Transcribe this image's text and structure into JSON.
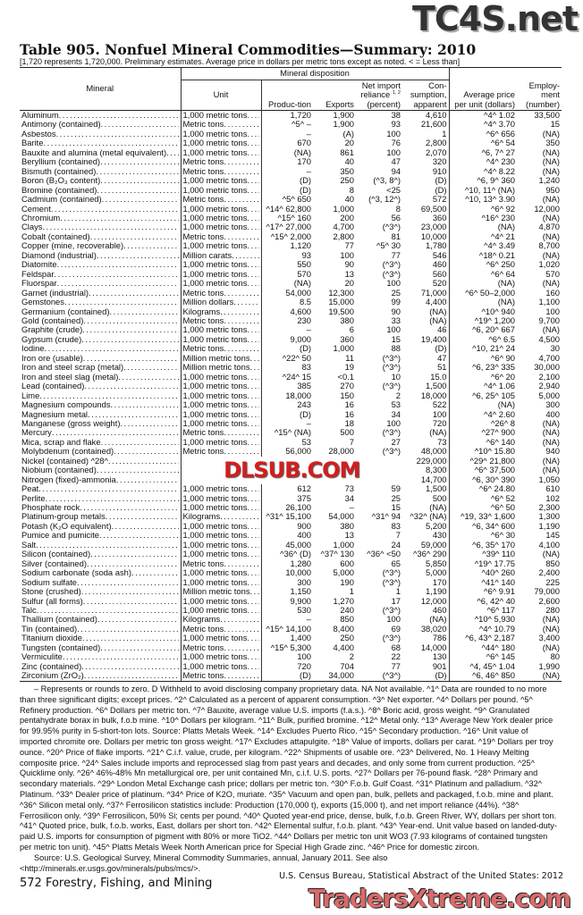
{
  "watermarks": {
    "top": "TC4S.net",
    "middle": "DLSUB.COM",
    "bottom": "TradersXtreme.com"
  },
  "title": "Table 905. Nonfuel Mineral Commodities—Summary: 2010",
  "subtitle": "[1,720 represents 1,720,000. Preliminary estimates. Average price in dollars per metric tons except as noted. < = Less than]",
  "headers": {
    "mineral": "Mineral",
    "disposition": "Mineral disposition",
    "unit": "Unit",
    "production": "Produc-tion",
    "exports": "Exports",
    "import": "Net import reliance ^1, 2^ (percent)",
    "consumption": "Con-sumption, apparent",
    "price": "Average price per unit (dollars)",
    "employment": "Employ-ment (number)"
  },
  "rows": [
    [
      "Aluminum",
      "1,000 metric tons",
      "1,720",
      "1,900",
      "38",
      "4,610",
      "^4^ 1.02",
      "33,500"
    ],
    [
      "Antimony (contained)",
      "Metric tons",
      "^5^ –",
      "1,900",
      "93",
      "21,600",
      "^4^ 3.70",
      "15"
    ],
    [
      "Asbestos",
      "1,000 metric tons",
      "–",
      "(A)",
      "100",
      "1",
      "^6^ 656",
      "(NA)"
    ],
    [
      "Barite",
      "1,000 metric tons",
      "670",
      "20",
      "76",
      "2,800",
      "^6^ 54",
      "350"
    ],
    [
      "Bauxite and alumina (metal equivalent)",
      "1,000 metric tons",
      "(NA)",
      "861",
      "100",
      "2,070",
      "^6, 7^ 27",
      "(NA)"
    ],
    [
      "Beryllium (contained)",
      "Metric tons",
      "170",
      "40",
      "47",
      "320",
      "^4^ 230",
      "(NA)"
    ],
    [
      "Bismuth (contained)",
      "Metric tons",
      "–",
      "350",
      "94",
      "910",
      "^4^ 8.22",
      "(NA)"
    ],
    [
      "Boron (B₂O₃ content)",
      "1,000 metric tons",
      "(D)",
      "250",
      "(^3, 8^)",
      "(D)",
      "^6, 9^ 360",
      "1,240"
    ],
    [
      "Bromine (contained)",
      "1,000 metric tons",
      "(D)",
      "8",
      "<25",
      "(D)",
      "^10, 11^ (NA)",
      "950"
    ],
    [
      "Cadmium (contained)",
      "Metric tons",
      "^5^ 650",
      "40",
      "(^3, 12^)",
      "572",
      "^10, 13^ 3.90",
      "(NA)"
    ],
    [
      "Cement",
      "1,000 metric tons",
      "^14^ 62,800",
      "1,000",
      "8",
      "69,500",
      "^6^ 92",
      "12,000"
    ],
    [
      "Chromium",
      "1,000 metric tons",
      "^15^ 160",
      "200",
      "56",
      "360",
      "^16^ 230",
      "(NA)"
    ],
    [
      "Clays",
      "1,000 metric tons",
      "^17^ 27,000",
      "4,700",
      "(^3^)",
      "23,000",
      "(NA)",
      "4,870"
    ],
    [
      "Cobalt (contained)",
      "Metric tons",
      "^15^ 2,000",
      "2,800",
      "81",
      "10,000",
      "^4^ 21",
      "(NA)"
    ],
    [
      "Copper (mine, recoverable)",
      "1,000 metric tons",
      "1,120",
      "77",
      "^5^ 30",
      "1,780",
      "^4^ 3.49",
      "8,700"
    ],
    [
      "Diamond (industrial)",
      "Million carats",
      "93",
      "100",
      "77",
      "546",
      "^18^ 0.21",
      "(NA)"
    ],
    [
      "Diatomite",
      "1,000 metric tons",
      "550",
      "90",
      "(^3^)",
      "460",
      "^6^ 250",
      "1,020"
    ],
    [
      "Feldspar",
      "1,000 metric tons",
      "570",
      "13",
      "(^3^)",
      "560",
      "^6^ 64",
      "570"
    ],
    [
      "Fluorspar",
      "1,000 metric tons",
      "(NA)",
      "20",
      "100",
      "520",
      "(NA)",
      "(NA)"
    ],
    [
      "Garnet (industrial)",
      "Metric tons",
      "54,000",
      "12,300",
      "25",
      "71,000",
      "^6^ 50–2,000",
      "160"
    ],
    [
      "Gemstones",
      "Million dollars",
      "8.5",
      "15,000",
      "99",
      "4,400",
      "(NA)",
      "1,100"
    ],
    [
      "Germanium (contained)",
      "Kilograms",
      "4,600",
      "19,500",
      "90",
      "(NA)",
      "^10^ 940",
      "100"
    ],
    [
      "Gold (contained)",
      "Metric tons",
      "230",
      "380",
      "33",
      "(NA)",
      "^19^ 1,200",
      "9,700"
    ],
    [
      "Graphite (crude)",
      "1,000 metric tons",
      "–",
      "6",
      "100",
      "46",
      "^6, 20^ 667",
      "(NA)"
    ],
    [
      "Gypsum (crude)",
      "1,000 metric tons",
      "9,000",
      "360",
      "15",
      "19,400",
      "^6^ 6.5",
      "4,500"
    ],
    [
      "Iodine",
      "Metric tons",
      "(D)",
      "1,000",
      "88",
      "(D)",
      "^10, 21^ 24",
      "30"
    ],
    [
      "Iron ore (usable)",
      "Million metric tons",
      "^22^ 50",
      "11",
      "(^3^)",
      "47",
      "^6^ 90",
      "4,700"
    ],
    [
      "Iron and steel scrap (metal)",
      "Million metric tons",
      "83",
      "19",
      "(^3^)",
      "51",
      "^6, 23^ 335",
      "30,000"
    ],
    [
      "Iron and steel slag (metal)",
      "1,000 metric tons",
      "^24^ 15",
      "<0.1",
      "10",
      "15.0",
      "^6^ 20",
      "2,100"
    ],
    [
      "Lead (contained)",
      "1,000 metric tons",
      "385",
      "270",
      "(^3^)",
      "1,500",
      "^4^ 1.06",
      "2,940"
    ],
    [
      "Lime",
      "1,000 metric tons",
      "18,000",
      "150",
      "2",
      "18,000",
      "^6, 25^ 105",
      "5,000"
    ],
    [
      "Magnesium compounds",
      "1,000 metric tons",
      "243",
      "16",
      "53",
      "522",
      "(NA)",
      "300"
    ],
    [
      "Magnesium metal",
      "1,000 metric tons",
      "(D)",
      "16",
      "34",
      "100",
      "^4^ 2.60",
      "400"
    ],
    [
      "Manganese (gross weight)",
      "1,000 metric tons",
      "–",
      "18",
      "100",
      "720",
      "^26^ 8",
      "(NA)"
    ],
    [
      "Mercury",
      "Metric tons",
      "^15^ (NA)",
      "500",
      "(^3^)",
      "(NA)",
      "^27^ 900",
      "(NA)"
    ],
    [
      "Mica, scrap and flake",
      "1,000 metric tons",
      "53",
      "7",
      "27",
      "73",
      "^6^ 140",
      "(NA)"
    ],
    [
      "Molybdenum (contained)",
      "Metric tons",
      "56,000",
      "28,000",
      "(^3^)",
      "48,000",
      "^10^ 15.80",
      "940"
    ],
    [
      "Nickel (contained) ^28^",
      "",
      "",
      "",
      "",
      "229,000",
      "^29^ 21,800",
      "(NA)"
    ],
    [
      "Niobium (contained)",
      "",
      "",
      "",
      "",
      "8,300",
      "^6^ 37,500",
      "(NA)"
    ],
    [
      "Nitrogen (fixed)-ammonia",
      "",
      "",
      "",
      "",
      "14,700",
      "^6, 30^ 390",
      "1,050"
    ],
    [
      "Peat",
      "1,000 metric tons",
      "612",
      "73",
      "59",
      "1,500",
      "^6^ 24.80",
      "610"
    ],
    [
      "Perlite",
      "1,000 metric tons",
      "375",
      "34",
      "25",
      "500",
      "^6^ 52",
      "102"
    ],
    [
      "Phosphate rock",
      "1,000 metric tons",
      "26,100",
      "–",
      "15",
      "(NA)",
      "^6^ 50",
      "2,300"
    ],
    [
      "Platinum-group metals",
      "Kilograms",
      "^31^ 15,100",
      "54,000",
      "^31^ 94",
      "^32^ (NA)",
      "^19, 33^ 1,600",
      "1,300"
    ],
    [
      "Potash (K₂O equivalent)",
      "1,000 metric tons",
      "900",
      "380",
      "83",
      "5,200",
      "^6, 34^ 600",
      "1,190"
    ],
    [
      "Pumice and pumicite",
      "1,000 metric tons",
      "400",
      "13",
      "7",
      "430",
      "^6^ 30",
      "145"
    ],
    [
      "Salt",
      "1,000 metric tons",
      "45,000",
      "1,000",
      "24",
      "59,000",
      "^6, 35^ 170",
      "4,100"
    ],
    [
      "Silicon (contained)",
      "1,000 metric tons",
      "^36^ (D)",
      "^37^ 130",
      "^36^ <50",
      "^36^ 290",
      "^39^ 110",
      "(NA)"
    ],
    [
      "Silver (contained)",
      "Metric tons",
      "1,280",
      "600",
      "65",
      "5,850",
      "^19^ 17.75",
      "850"
    ],
    [
      "Sodium carbonate (soda ash)",
      "1,000 metric tons",
      "10,000",
      "5,000",
      "(^3^)",
      "5,000",
      "^40^ 260",
      "2,400"
    ],
    [
      "Sodium sulfate",
      "1,000 metric tons",
      "300",
      "190",
      "(^3^)",
      "170",
      "^41^ 140",
      "225"
    ],
    [
      "Stone (crushed)",
      "Million metric tons",
      "1,150",
      "1",
      "1",
      "1,190",
      "^6^ 9.91",
      "79,000"
    ],
    [
      "Sulfur (all forms)",
      "1,000 metric tons",
      "9,900",
      "1,270",
      "17",
      "12,000",
      "^6, 42^ 40",
      "2,600"
    ],
    [
      "Talc",
      "1,000 metric tons",
      "530",
      "240",
      "(^3^)",
      "460",
      "^6^ 117",
      "280"
    ],
    [
      "Thallium (contained)",
      "Kilograms",
      "–",
      "850",
      "100",
      "(NA)",
      "^10^ 5,930",
      "(NA)"
    ],
    [
      "Tin (contained)",
      "Metric tons",
      "^15^ 14,100",
      "8,400",
      "69",
      "38,020",
      "^4^ 10.79",
      "(NA)"
    ],
    [
      "Titanium dioxide",
      "1,000 metric tons",
      "1,400",
      "250",
      "(^3^)",
      "786",
      "^6, 43^ 2,187",
      "3,400"
    ],
    [
      "Tungsten (contained)",
      "Metric tons",
      "^15^ 5,300",
      "4,400",
      "68",
      "14,000",
      "^44^ 180",
      "(NA)"
    ],
    [
      "Vermiculite",
      "1,000 metric tons",
      "100",
      "2",
      "22",
      "130",
      "^6^ 145",
      "80"
    ],
    [
      "Zinc (contained)",
      "1,000 metric tons",
      "720",
      "704",
      "77",
      "901",
      "^4, 45^ 1.04",
      "1,990"
    ],
    [
      "Zirconium (ZrO₂)",
      "Metric tons",
      "(D)",
      "34,000",
      "(^3^)",
      "(D)",
      "^6, 46^ 850",
      "(NA)"
    ]
  ],
  "footnotes": "– Represents or rounds to zero. D Withheld to avoid disclosing company proprietary data. NA Not available. ^1^ Data are rounded to no more than three significant digits; except prices. ^2^ Calculated as a percent of apparent consumption. ^3^ Net exporter. ^4^ Dollars per pound. ^5^ Refinery production. ^6^ Dollars per metric ton. ^7^ Bauxite, average value U.S. imports (f.a.s.). ^8^ Boric acid, gross weight. ^9^ Granulated pentahydrate borax in bulk, f.o.b mine. ^10^ Dollars per kilogram. ^11^ Bulk, purified bromine. ^12^ Metal only. ^13^ Average New York dealer price for 99.95% purity in 5-short-ton lots. Source: Platts Metals Week. ^14^ Excludes Puerto Rico. ^15^ Secondary production. ^16^ Unit value of imported chromite ore. Dollars per metric ton gross weight. ^17^ Excludes attapulgite. ^18^ Value of imports, dollars per carat. ^19^ Dollars per troy ounce. ^20^ Price of flake imports. ^21^ C.i.f. value, crude, per kilogram. ^22^ Shipments of usable ore. ^23^ Delivered, No. 1 Heavy Melting composite price. ^24^ Sales include imports and reprocessed slag from past years and decades, and only some from current production. ^25^ Quicklime only. ^26^ 46%-48% Mn metallurgical ore, per unit contained Mn, c.i.f. U.S. ports. ^27^ Dollars per 76-pound flask. ^28^ Primary and secondary materials. ^29^ London Metal Exchange cash price; dollars per metric ton. ^30^ F.o.b. Gulf Coast. ^31^ Platinum and palladium. ^32^ Platinum. ^33^ Dealer price of platinum. ^34^ Price of K2O, muriate. ^35^ Vacuum and open pan, bulk, pellets and packaged, f.o.b. mine and plant. ^36^ Silicon metal only. ^37^ Ferrosilicon statistics include: Production (170,000 t), exports (15,000 t), and net import reliance (44%). ^38^ Ferrosilicon only. ^39^ Ferrosilicon, 50% Si; cents per pound. ^40^ Quoted year-end price, dense, bulk, f.o.b. Green River, WY, dollars per short ton. ^41^ Quoted price, bulk, f.o.b. works, East, dollars per short ton. ^42^ Elemental sulfur, f.o.b. plant. ^43^ Year-end. Unit value based on landed-duty-paid U.S. imports for consumption of pigment with 80% or more TiO2. ^44^ Dollars per metric ton unit WO3 (7.93 kilograms of contained tungsten per metric ton unit). ^45^ Platts Metals Week North American price for Special High Grade zinc. ^46^ Price for domestic zircon.",
  "source": "Source: U.S. Geological Survey, Mineral Commodity Summaries, annual, January 2011. See also <http://minerals.er.usgs.gov/minerals/pubs/mcs/>.",
  "page_footer": "572  Forestry, Fishing, and Mining",
  "credit": "U.S. Census Bureau, Statistical Abstract of the United States: 2012"
}
